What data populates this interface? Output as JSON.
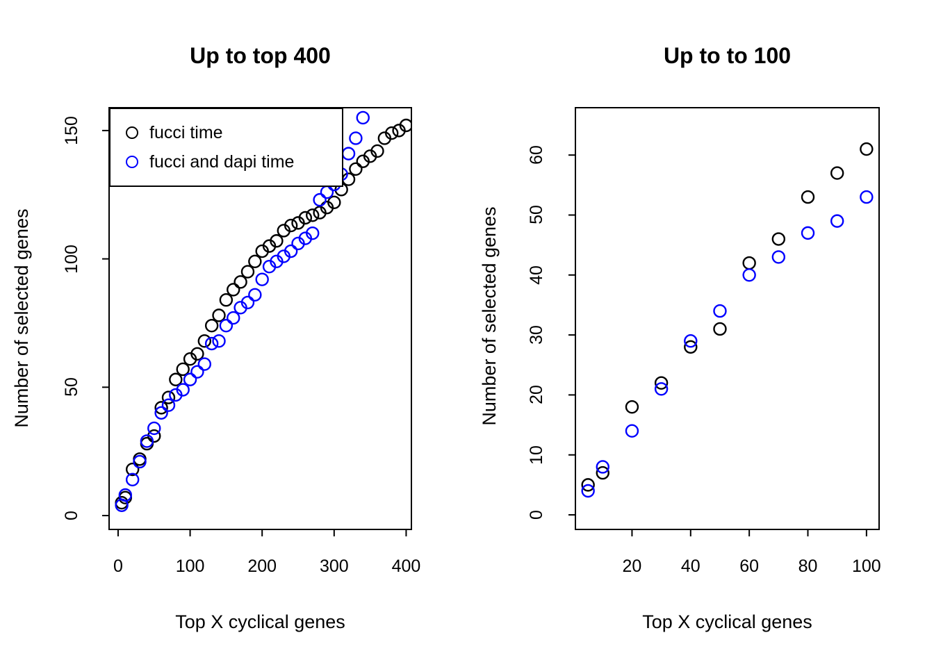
{
  "figure": {
    "background": "#ffffff",
    "foreground": "#000000"
  },
  "chart_data": [
    {
      "type": "scatter",
      "title": "Up to top 400",
      "xlabel": "Top X cyclical genes",
      "ylabel": "Number of selected genes",
      "xlim": [
        -12.5,
        407.3
      ],
      "ylim": [
        -5.4,
        158.9
      ],
      "x_ticks": [
        0,
        100,
        200,
        300,
        400
      ],
      "y_ticks": [
        0,
        50,
        100,
        150
      ],
      "grid": false,
      "marker": "open-circle",
      "legend": {
        "position": "topleft",
        "items": [
          {
            "label": "fucci time",
            "color": "#000000"
          },
          {
            "label": "fucci and dapi time",
            "color": "#0000ff"
          }
        ]
      },
      "series": [
        {
          "name": "fucci time",
          "color": "#000000",
          "x": [
            5,
            10,
            20,
            30,
            40,
            50,
            60,
            70,
            80,
            90,
            100,
            110,
            120,
            130,
            140,
            150,
            160,
            170,
            180,
            190,
            200,
            210,
            220,
            230,
            240,
            250,
            260,
            270,
            280,
            290,
            300,
            310,
            320,
            330,
            340,
            350,
            360,
            370,
            380,
            390,
            400
          ],
          "y": [
            5,
            7,
            18,
            22,
            28,
            31,
            42,
            46,
            53,
            57,
            61,
            63,
            68,
            74,
            78,
            84,
            88,
            91,
            95,
            99,
            103,
            105,
            107,
            111,
            113,
            114,
            116,
            117,
            118,
            120,
            122,
            127,
            131,
            135,
            138,
            140,
            142,
            147,
            149,
            150,
            152
          ]
        },
        {
          "name": "fucci and dapi time",
          "color": "#0000ff",
          "x": [
            5,
            10,
            20,
            30,
            40,
            50,
            60,
            70,
            80,
            90,
            100,
            110,
            120,
            130,
            140,
            150,
            160,
            170,
            180,
            190,
            200,
            210,
            220,
            230,
            240,
            250,
            260,
            270,
            280,
            290,
            300,
            310,
            320,
            330,
            340
          ],
          "y": [
            4,
            8,
            14,
            21,
            29,
            34,
            40,
            43,
            47,
            49,
            53,
            56,
            59,
            67,
            68,
            74,
            77,
            81,
            83,
            86,
            92,
            97,
            99,
            101,
            103,
            106,
            108,
            110,
            123,
            126,
            129,
            133,
            141,
            147,
            155
          ]
        }
      ]
    },
    {
      "type": "scatter",
      "title": "Up to to 100",
      "xlabel": "Top X cyclical genes",
      "ylabel": "Number of selected genes",
      "xlim": [
        0.69,
        104.3
      ],
      "ylim": [
        -2.43,
        67.9
      ],
      "x_ticks": [
        20,
        40,
        60,
        80,
        100
      ],
      "y_ticks": [
        0,
        10,
        20,
        30,
        40,
        50,
        60
      ],
      "grid": false,
      "marker": "open-circle",
      "legend": null,
      "series": [
        {
          "name": "fucci time",
          "color": "#000000",
          "x": [
            5,
            10,
            20,
            30,
            40,
            50,
            60,
            70,
            80,
            90,
            100
          ],
          "y": [
            5,
            7,
            18,
            22,
            28,
            31,
            42,
            46,
            53,
            57,
            61
          ]
        },
        {
          "name": "fucci and dapi time",
          "color": "#0000ff",
          "x": [
            5,
            10,
            20,
            30,
            40,
            50,
            60,
            70,
            80,
            90,
            100
          ],
          "y": [
            4,
            8,
            14,
            21,
            29,
            34,
            40,
            43,
            47,
            49,
            53
          ]
        }
      ]
    }
  ]
}
